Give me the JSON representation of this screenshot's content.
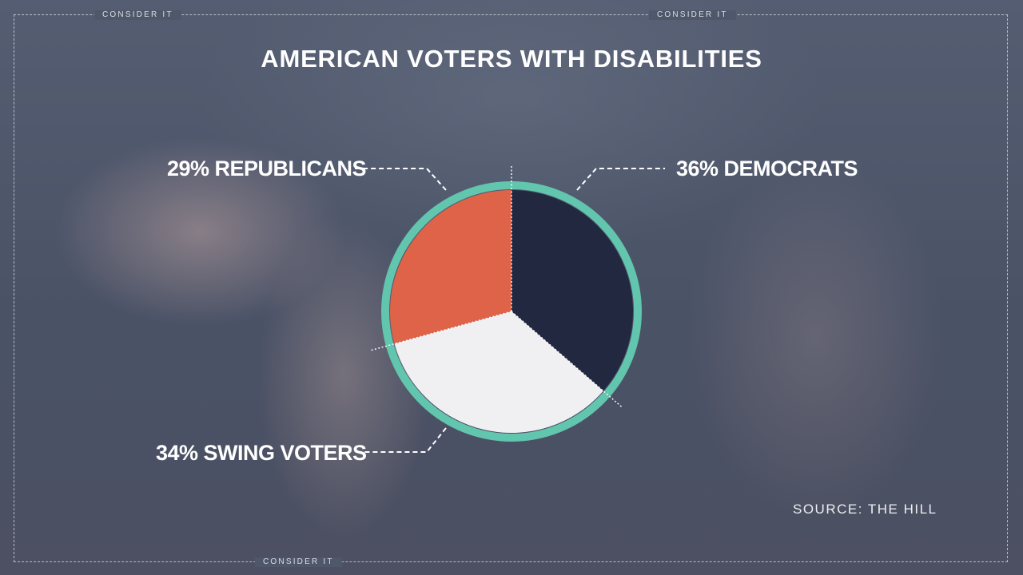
{
  "brand": {
    "label": "CONSIDER IT"
  },
  "chart_data": {
    "type": "pie",
    "title": "AMERICAN VOTERS WITH DISABILITIES",
    "slices": [
      {
        "name": "DEMOCRATS",
        "value": 36,
        "label": "36% DEMOCRATS",
        "color": "#212840"
      },
      {
        "name": "SWING VOTERS",
        "value": 34,
        "label": "34% SWING VOTERS",
        "color": "#f0f0f2"
      },
      {
        "name": "REPUBLICANS",
        "value": 29,
        "label": "29% REPUBLICANS",
        "color": "#de6349"
      }
    ],
    "ring_color": "#62c5ae",
    "source": "SOURCE: THE HILL"
  }
}
